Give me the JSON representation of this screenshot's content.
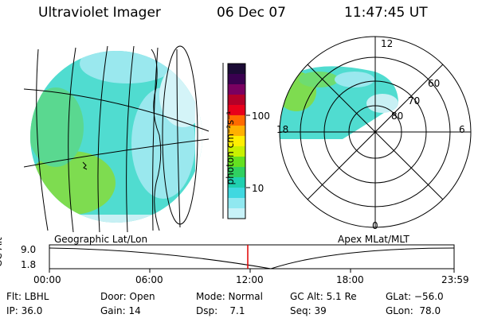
{
  "header": {
    "instrument": "Ultraviolet Imager",
    "date": "06 Dec 07",
    "time": "11:47:45 UT"
  },
  "colorbar": {
    "unit_label": "photon cm⁻²s⁻¹",
    "ticks": [
      "100",
      "10"
    ],
    "colors": [
      "#1b0b35",
      "#3a0050",
      "#7a0060",
      "#b40028",
      "#e8001a",
      "#ff6a00",
      "#ffb000",
      "#ffee00",
      "#c8f000",
      "#64e020",
      "#30d060",
      "#20d0b0",
      "#40d8e0",
      "#90e8f0",
      "#c8f2f8"
    ]
  },
  "geo_map": {
    "label": "Geographic Lat/Lon"
  },
  "polar_plot": {
    "label": "Apex MLat/MLT",
    "mlt_labels": [
      "12",
      "18",
      "6",
      "0"
    ],
    "mlat_labels": [
      "60",
      "70",
      "80"
    ]
  },
  "altitude_plot": {
    "ylabel": "GC Alt",
    "y_ticks": [
      "9.0",
      "1.8"
    ],
    "x_ticks": [
      "00:00",
      "06:00",
      "12:00",
      "18:00",
      "23:59"
    ]
  },
  "footer": {
    "flt": "Flt: LBHL",
    "ip": "IP: 36.0",
    "door": "Door: Open",
    "gain": "Gain: 14",
    "mode": "Mode: Normal",
    "dsp": "Dsp:    7.1",
    "gc_alt": "GC Alt: 5.1 Re",
    "seq": "Seq: 39",
    "glat": "GLat: −56.0",
    "glon": "GLon:  78.0"
  },
  "icons": {
    "coastline": "coastline-outline-icon",
    "orbit": "orbit-curve-icon",
    "time_marker": "current-time-marker-icon"
  }
}
